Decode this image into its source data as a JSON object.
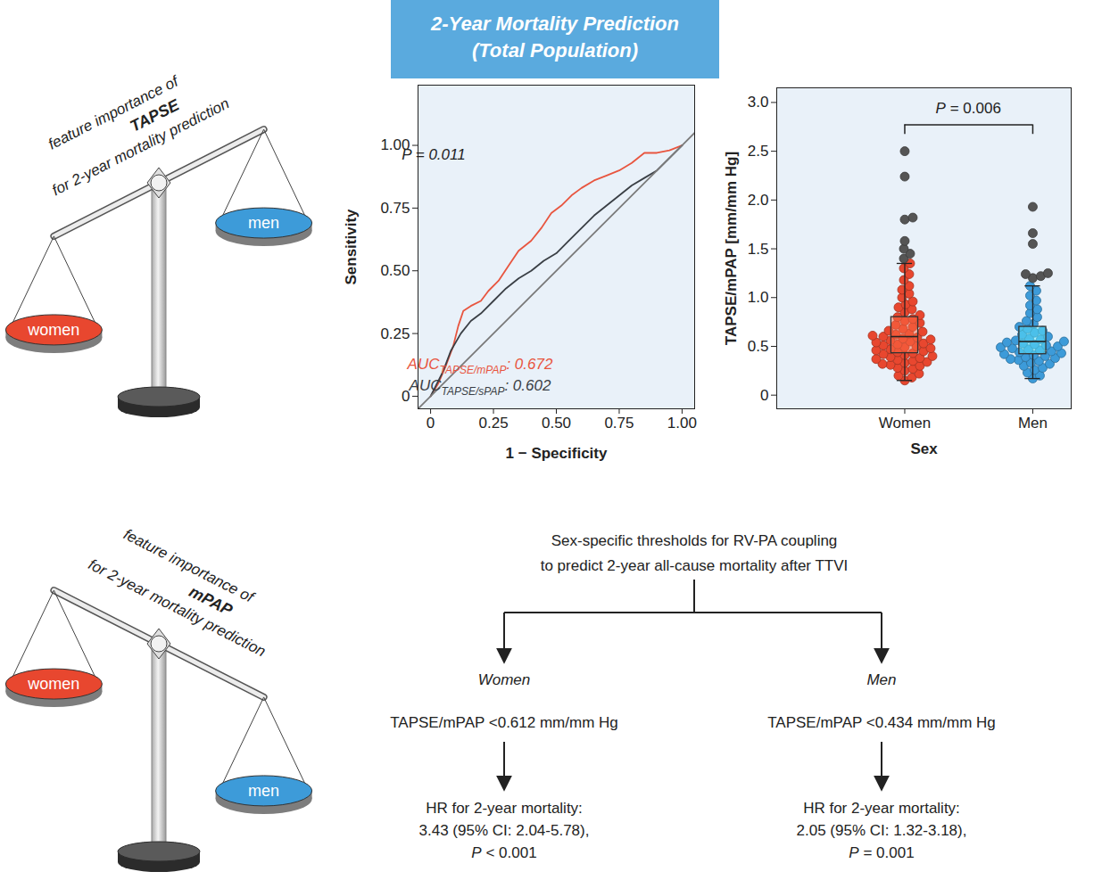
{
  "chart_data": [
    {
      "type": "line",
      "title": "2-Year Mortality Prediction (Total Population)",
      "x_label": "1 − Specificity",
      "y_label": "Sensitivity",
      "xlim": [
        -0.05,
        1.05
      ],
      "ylim": [
        -0.05,
        1.24
      ],
      "xticks": [
        0,
        0.25,
        {
          "value": 0.5,
          "label": "0.50"
        },
        0.75,
        {
          "value": 1,
          "label": "1.00"
        }
      ],
      "yticks": [
        0,
        0.25,
        {
          "value": 0.5,
          "label": "0.50"
        },
        0.75,
        {
          "value": 1,
          "label": "1.00"
        }
      ],
      "series": [
        {
          "color": "#e8553f",
          "x": [
            0,
            0.03,
            0.06,
            0.09,
            0.11,
            0.13,
            0.16,
            0.2,
            0.23,
            0.27,
            0.31,
            0.35,
            0.4,
            0.44,
            0.48,
            0.52,
            0.56,
            0.6,
            0.65,
            0.7,
            0.75,
            0.8,
            0.85,
            0.9,
            0.95,
            1
          ],
          "values": [
            0,
            0.05,
            0.12,
            0.2,
            0.28,
            0.34,
            0.36,
            0.38,
            0.42,
            0.46,
            0.52,
            0.58,
            0.62,
            0.67,
            0.73,
            0.76,
            0.8,
            0.83,
            0.86,
            0.88,
            0.9,
            0.93,
            0.97,
            0.97,
            0.98,
            1
          ]
        },
        {
          "color": "#3a3f45",
          "x": [
            0,
            0.05,
            0.08,
            0.12,
            0.16,
            0.2,
            0.25,
            0.3,
            0.35,
            0.4,
            0.45,
            0.5,
            0.55,
            0.6,
            0.65,
            0.7,
            0.75,
            0.8,
            0.85,
            0.9,
            0.95,
            1
          ],
          "values": [
            0,
            0.1,
            0.18,
            0.25,
            0.3,
            0.33,
            0.38,
            0.43,
            0.47,
            0.5,
            0.54,
            0.57,
            0.62,
            0.67,
            0.72,
            0.76,
            0.8,
            0.84,
            0.87,
            0.9,
            0.95,
            1
          ]
        },
        {
          "color": "#7a7a7a",
          "x": [
            -0.05,
            1.05
          ],
          "values": [
            -0.05,
            1.05
          ]
        }
      ],
      "annotations": [
        {
          "text": "P = 0.011"
        },
        {
          "text": "AUC",
          "subscript": "TAPSE/mPAP",
          "suffix": ": 0.672",
          "color": "#e8553f"
        },
        {
          "text": "AUC",
          "subscript": "TAPSE/sPAP",
          "suffix": ": 0.602",
          "color": "#3a3f45"
        }
      ]
    },
    {
      "type": "beeswarm",
      "x_label": "Sex",
      "y_label": "TAPSE/mPAP [mm/mm Hg]",
      "categories": [
        "Women",
        "Men"
      ],
      "colors": [
        "#e8472f",
        "#3d9bd9"
      ],
      "marker": "circle",
      "values": [
        [
          0.15,
          0.18,
          0.2,
          0.22,
          0.25,
          0.27,
          0.28,
          0.3,
          0.31,
          0.32,
          0.33,
          0.34,
          0.35,
          0.36,
          0.37,
          0.38,
          0.39,
          0.4,
          0.41,
          0.42,
          0.43,
          0.44,
          0.45,
          0.46,
          0.47,
          0.48,
          0.49,
          0.5,
          0.51,
          0.52,
          0.53,
          0.54,
          0.55,
          0.56,
          0.57,
          0.58,
          0.59,
          0.6,
          0.61,
          0.62,
          0.63,
          0.65,
          0.66,
          0.68,
          0.7,
          0.72,
          0.74,
          0.76,
          0.78,
          0.8,
          0.82,
          0.85,
          0.88,
          0.9,
          0.93,
          0.96,
          1.0,
          1.04,
          1.08,
          1.12,
          1.18,
          1.24,
          1.3,
          1.35
        ],
        [
          0.17,
          0.2,
          0.23,
          0.26,
          0.28,
          0.3,
          0.32,
          0.33,
          0.35,
          0.36,
          0.37,
          0.38,
          0.39,
          0.4,
          0.41,
          0.42,
          0.43,
          0.44,
          0.45,
          0.46,
          0.47,
          0.48,
          0.49,
          0.5,
          0.51,
          0.52,
          0.53,
          0.54,
          0.55,
          0.56,
          0.57,
          0.58,
          0.6,
          0.62,
          0.64,
          0.66,
          0.68,
          0.7,
          0.73,
          0.76,
          0.8,
          0.84,
          0.88,
          0.92,
          0.97,
          1.02,
          1.07,
          1.12
        ]
      ],
      "outliers": {
        "color": "#555555",
        "values": [
          [
            1.4,
            1.45,
            1.5,
            1.58,
            1.8,
            1.82,
            2.24,
            2.5
          ],
          [
            1.2,
            1.22,
            1.24,
            1.25,
            1.55,
            1.66,
            1.93
          ]
        ]
      },
      "box": [
        {
          "whisker_low": 0.15,
          "q1": 0.43,
          "median": 0.6,
          "q3": 0.8,
          "whisker_high": 1.35
        },
        {
          "whisker_low": 0.17,
          "q1": 0.42,
          "median": 0.55,
          "q3": 0.7,
          "whisker_high": 1.12
        }
      ],
      "ylim": [
        -0.14,
        3.15
      ],
      "yticks": [
        0,
        0.5,
        {
          "value": 1,
          "label": "1.0"
        },
        1.5,
        {
          "value": 2,
          "label": "2.0"
        },
        2.5,
        {
          "value": 3,
          "label": "3.0"
        }
      ],
      "annotations": [
        {
          "text": "P = 0.006"
        }
      ]
    }
  ],
  "scales": [
    {
      "caption": [
        "feature importance of",
        "TAPSE",
        "for 2-year mortality prediction"
      ],
      "pans": [
        "women",
        "men"
      ],
      "colors": [
        "#e8472f",
        "#3d9bd9"
      ],
      "heavier": "women"
    },
    {
      "caption": [
        "feature importance of",
        "mPAP",
        "for 2-year mortality prediction"
      ],
      "pans": [
        "women",
        "men"
      ],
      "colors": [
        "#e8472f",
        "#3d9bd9"
      ],
      "heavier": "men"
    }
  ],
  "flowchart": {
    "title": [
      "Sex-specific thresholds for RV-PA coupling",
      "to predict 2-year all-cause mortality after TTVI"
    ],
    "branches": [
      {
        "group": "Women",
        "threshold": "TAPSE/mPAP <0.612 mm/mm Hg",
        "result": [
          "HR for 2-year mortality:",
          "3.43 (95% CI: 2.04-5.78),",
          "P < 0.001"
        ]
      },
      {
        "group": "Men",
        "threshold": "TAPSE/mPAP <0.434 mm/mm Hg",
        "result": [
          "HR for 2-year mortality:",
          "2.05 (95% CI: 1.32-3.18),",
          "P = 0.001"
        ]
      }
    ]
  }
}
